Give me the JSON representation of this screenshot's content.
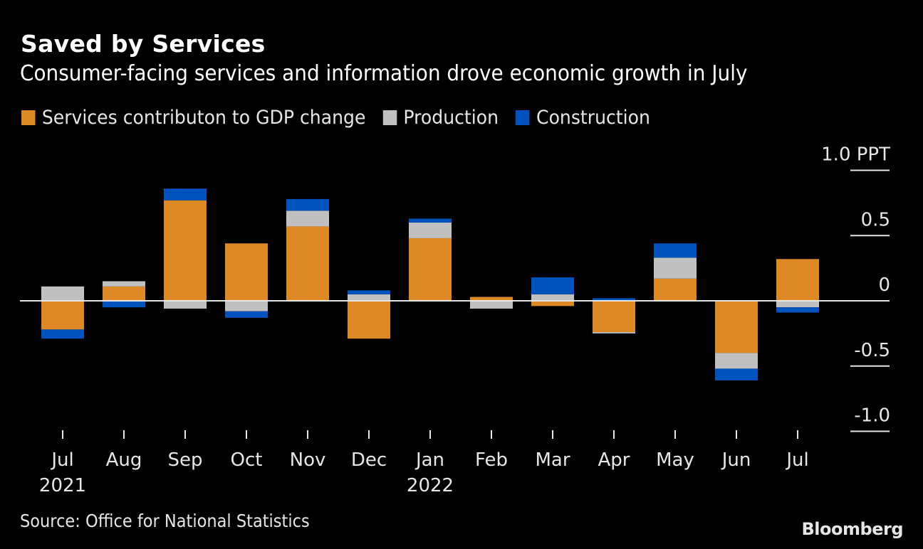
{
  "header": {
    "title": "Saved by Services",
    "subtitle": "Consumer-facing services and information drove economic growth in July"
  },
  "footer": {
    "source": "Source: Office for National Statistics",
    "brand": "Bloomberg"
  },
  "colors": {
    "background": "#000000",
    "services": "#dd8a26",
    "production": "#c0c0c0",
    "construction": "#0052bd",
    "axis": "#e6e6e6"
  },
  "chart_data": {
    "type": "bar",
    "stacked": true,
    "title": "Saved by Services",
    "subtitle": "Consumer-facing services and information drove economic growth in July",
    "xlabel": "",
    "ylabel": "PPT",
    "ylim": [
      -1.0,
      1.0
    ],
    "yticks": [
      {
        "value": 1.0,
        "label": "1.0 PPT"
      },
      {
        "value": 0.5,
        "label": "0.5"
      },
      {
        "value": 0,
        "label": "0"
      },
      {
        "value": -0.5,
        "label": "-0.5"
      },
      {
        "value": -1.0,
        "label": "-1.0"
      }
    ],
    "y_axis_position": "right",
    "legend_position": "top-left",
    "grid": false,
    "categories": [
      "Jul",
      "Aug",
      "Sep",
      "Oct",
      "Nov",
      "Dec",
      "Jan",
      "Feb",
      "Mar",
      "Apr",
      "May",
      "Jun",
      "Jul"
    ],
    "category_sublabels": [
      "2021",
      "",
      "",
      "",
      "",
      "",
      "2022",
      "",
      "",
      "",
      "",
      "",
      ""
    ],
    "series": [
      {
        "name": "Services contributon to GDP change",
        "color": "#dd8a26",
        "values": [
          -0.22,
          0.11,
          0.77,
          0.44,
          0.57,
          -0.29,
          0.48,
          0.03,
          -0.04,
          -0.24,
          0.17,
          -0.4,
          0.32
        ]
      },
      {
        "name": "Production",
        "color": "#c0c0c0",
        "values": [
          0.11,
          0.04,
          -0.06,
          -0.08,
          0.12,
          0.05,
          0.12,
          -0.06,
          0.05,
          -0.01,
          0.16,
          -0.12,
          -0.05
        ]
      },
      {
        "name": "Construction",
        "color": "#0052bd",
        "values": [
          -0.07,
          -0.05,
          0.09,
          -0.05,
          0.09,
          0.03,
          0.03,
          0.0,
          0.13,
          0.02,
          0.11,
          -0.09,
          -0.04
        ]
      }
    ]
  }
}
